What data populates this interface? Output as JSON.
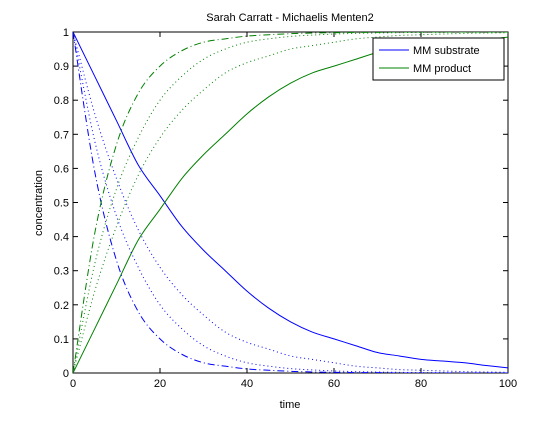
{
  "chart_data": {
    "type": "line",
    "title": "Sarah Carratt - Michaelis Menten2",
    "xlabel": "time",
    "ylabel": "concentration",
    "xlim": [
      0,
      100
    ],
    "ylim": [
      0,
      1
    ],
    "xticks": [
      "0",
      "20",
      "40",
      "60",
      "80",
      "100"
    ],
    "yticks": [
      "0",
      "0.1",
      "0.2",
      "0.3",
      "0.4",
      "0.5",
      "0.6",
      "0.7",
      "0.8",
      "0.9",
      "1"
    ],
    "grid": false,
    "legend_position": "top-right",
    "colors": {
      "substrate": "#0000ff",
      "product": "#008000"
    },
    "x": [
      0,
      5,
      10,
      15,
      20,
      25,
      30,
      35,
      40,
      45,
      50,
      55,
      60,
      65,
      70,
      75,
      80,
      85,
      90,
      95,
      100
    ],
    "series": [
      {
        "name": "MM substrate",
        "color": "#0000ff",
        "style": "solid",
        "values": [
          1.0,
          0.87,
          0.74,
          0.61,
          0.52,
          0.43,
          0.36,
          0.3,
          0.24,
          0.19,
          0.15,
          0.12,
          0.1,
          0.08,
          0.06,
          0.05,
          0.04,
          0.035,
          0.03,
          0.022,
          0.015
        ]
      },
      {
        "name": "MM product",
        "color": "#008000",
        "style": "solid",
        "values": [
          0.0,
          0.13,
          0.26,
          0.39,
          0.48,
          0.57,
          0.64,
          0.7,
          0.76,
          0.81,
          0.85,
          0.88,
          0.9,
          0.92,
          0.94,
          0.95,
          0.96,
          0.965,
          0.97,
          0.978,
          0.985
        ]
      },
      {
        "color": "#0000ff",
        "style": "dotted",
        "values": [
          1.0,
          0.76,
          0.57,
          0.42,
          0.31,
          0.23,
          0.17,
          0.12,
          0.09,
          0.07,
          0.05,
          0.04,
          0.03,
          0.02,
          0.015,
          0.01,
          0.008,
          0.006,
          0.004,
          0.003,
          0.002
        ]
      },
      {
        "color": "#008000",
        "style": "dotted",
        "values": [
          0.0,
          0.24,
          0.43,
          0.58,
          0.69,
          0.77,
          0.83,
          0.88,
          0.91,
          0.93,
          0.95,
          0.96,
          0.97,
          0.98,
          0.985,
          0.99,
          0.992,
          0.994,
          0.996,
          0.997,
          0.998
        ]
      },
      {
        "color": "#0000ff",
        "style": "dotted",
        "values": [
          1.0,
          0.68,
          0.46,
          0.31,
          0.2,
          0.13,
          0.08,
          0.05,
          0.03,
          0.02,
          0.013,
          0.009,
          0.006,
          0.004,
          0.003,
          0.002,
          0.001,
          0.001,
          0.0,
          0.0,
          0.0
        ]
      },
      {
        "color": "#008000",
        "style": "dotted",
        "values": [
          0.0,
          0.32,
          0.54,
          0.69,
          0.8,
          0.87,
          0.92,
          0.95,
          0.97,
          0.98,
          0.987,
          0.991,
          0.994,
          0.996,
          0.997,
          0.998,
          0.999,
          0.999,
          1.0,
          1.0,
          1.0
        ]
      },
      {
        "color": "#0000ff",
        "style": "dashdot",
        "values": [
          1.0,
          0.59,
          0.33,
          0.18,
          0.1,
          0.055,
          0.03,
          0.02,
          0.012,
          0.008,
          0.005,
          0.003,
          0.002,
          0.001,
          0.001,
          0.0,
          0.0,
          0.0,
          0.0,
          0.0,
          0.0
        ]
      },
      {
        "color": "#008000",
        "style": "dashdot",
        "values": [
          0.0,
          0.41,
          0.67,
          0.82,
          0.9,
          0.945,
          0.97,
          0.98,
          0.988,
          0.992,
          0.995,
          0.997,
          0.998,
          0.999,
          0.999,
          1.0,
          1.0,
          1.0,
          1.0,
          1.0,
          1.0
        ]
      }
    ]
  }
}
